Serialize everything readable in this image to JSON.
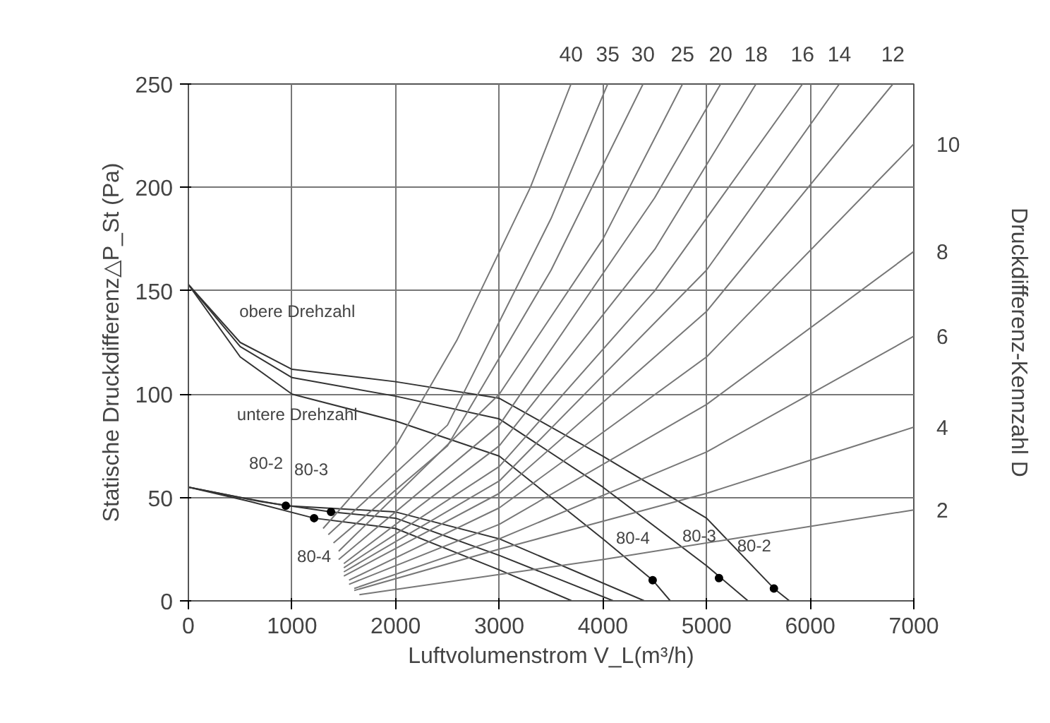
{
  "chart_data": {
    "type": "line",
    "xlabel": "Luftvolumenstrom V_L(m³/h)",
    "ylabel": "Statische Druckdifferenz△P_St (Pa)",
    "y2label": "Druckdifferenz-Kennzahl D",
    "xlim": [
      0,
      7000
    ],
    "xticks": [
      0,
      1000,
      2000,
      3000,
      4000,
      5000,
      6000,
      7000
    ],
    "ylim": [
      0,
      250
    ],
    "yticks": [
      0,
      50,
      100,
      150,
      200,
      250
    ],
    "grid": true,
    "marker": "none",
    "line_style": "solid",
    "series": [
      {
        "color": "#333333",
        "x": [
          0,
          500,
          1000,
          2000,
          3000,
          4000,
          5000,
          5650,
          5800
        ],
        "values": [
          153,
          125,
          112,
          106,
          98,
          70,
          40,
          6,
          0
        ]
      },
      {
        "color": "#333333",
        "x": [
          0,
          500,
          1000,
          2000,
          3000,
          4000,
          5000,
          5400
        ],
        "values": [
          153,
          123,
          108,
          99,
          88,
          55,
          17,
          0
        ]
      },
      {
        "color": "#333333",
        "x": [
          0,
          500,
          1000,
          2000,
          3000,
          4000,
          4480,
          4650
        ],
        "values": [
          153,
          118,
          100,
          87,
          70,
          30,
          10,
          0
        ]
      },
      {
        "color": "#333333",
        "x": [
          0,
          500,
          940,
          2000,
          3000,
          4400
        ],
        "values": [
          55,
          50,
          46,
          43,
          30,
          0
        ]
      },
      {
        "color": "#333333",
        "x": [
          0,
          700,
          1376,
          2000,
          3000,
          4100
        ],
        "values": [
          55,
          48,
          43,
          40,
          22,
          0
        ]
      },
      {
        "color": "#333333",
        "x": [
          0,
          600,
          1213,
          2000,
          3000,
          3700
        ],
        "values": [
          55,
          48,
          40,
          35,
          15,
          0
        ]
      },
      {
        "name": "40",
        "color": "#777777",
        "x": [
          1300,
          2000,
          2590,
          3300,
          3692
        ],
        "values": [
          35,
          75,
          126,
          200,
          250
        ]
      },
      {
        "name": "35",
        "color": "#777777",
        "x": [
          1350,
          2500,
          3500,
          4046
        ],
        "values": [
          32,
          85,
          185,
          250
        ]
      },
      {
        "name": "30",
        "color": "#777777",
        "x": [
          1400,
          2500,
          3500,
          4387
        ],
        "values": [
          28,
          75,
          160,
          250
        ]
      },
      {
        "name": "25",
        "color": "#777777",
        "x": [
          1450,
          3000,
          4000,
          4768
        ],
        "values": [
          24,
          100,
          175,
          250
        ]
      },
      {
        "name": "20",
        "color": "#777777",
        "x": [
          1450,
          3000,
          4500,
          5136
        ],
        "values": [
          20,
          85,
          195,
          250
        ]
      },
      {
        "name": "18",
        "color": "#777777",
        "x": [
          1500,
          3000,
          4500,
          5477
        ],
        "values": [
          18,
          75,
          170,
          250
        ]
      },
      {
        "name": "16",
        "color": "#777777",
        "x": [
          1500,
          3000,
          4500,
          5926
        ],
        "values": [
          16,
          65,
          150,
          250
        ]
      },
      {
        "name": "14",
        "color": "#777777",
        "x": [
          1500,
          3000,
          5000,
          6281
        ],
        "values": [
          14,
          58,
          160,
          250
        ]
      },
      {
        "name": "12",
        "color": "#777777",
        "x": [
          1500,
          3000,
          5000,
          6798
        ],
        "values": [
          12,
          52,
          140,
          250
        ]
      },
      {
        "name": "10",
        "color": "#777777",
        "x": [
          1550,
          3000,
          5000,
          7000
        ],
        "values": [
          10,
          45,
          118,
          221
        ]
      },
      {
        "name": "8",
        "color": "#777777",
        "x": [
          1550,
          3000,
          5000,
          7000
        ],
        "values": [
          8,
          37,
          95,
          169
        ]
      },
      {
        "name": "6",
        "color": "#777777",
        "x": [
          1600,
          3000,
          5000,
          7000
        ],
        "values": [
          6,
          30,
          72,
          128
        ]
      },
      {
        "name": "4",
        "color": "#777777",
        "x": [
          1600,
          3000,
          5000,
          7000
        ],
        "values": [
          5,
          25,
          52,
          84
        ]
      },
      {
        "name": "2",
        "color": "#777777",
        "x": [
          1650,
          4000,
          7000
        ],
        "values": [
          3,
          20,
          44
        ]
      },
      {
        "type": "scatter",
        "marker": "circle",
        "color": "#000000",
        "x": [
          940,
          1376,
          1213,
          4480,
          5120,
          5650
        ],
        "values": [
          46,
          43,
          40,
          10,
          11,
          6
        ]
      }
    ],
    "annotations": [
      "obere Drehzahl",
      "untere Drehzahl",
      {
        "text": "80-2",
        "x": 940,
        "y": 46
      },
      {
        "text": "80-3",
        "x": 1376,
        "y": 43
      },
      {
        "text": "80-4",
        "x": 1213,
        "y": 40
      },
      {
        "text": "80-4",
        "x": 4480,
        "y": 10
      },
      {
        "text": "80-3",
        "x": 5120,
        "y": 11
      },
      {
        "text": "80-2",
        "x": 5650,
        "y": 6
      }
    ]
  }
}
